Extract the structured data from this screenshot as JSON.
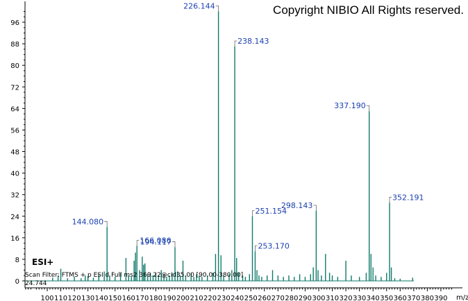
{
  "chart_data": {
    "type": "bar",
    "title": "",
    "xlabel": "m/z",
    "ylabel": "",
    "xlim": [
      80,
      400
    ],
    "ylim": [
      0,
      100
    ],
    "x_ticks": [
      100,
      110,
      120,
      130,
      140,
      150,
      160,
      170,
      180,
      190,
      200,
      210,
      220,
      230,
      240,
      250,
      260,
      270,
      280,
      290,
      300,
      310,
      320,
      330,
      340,
      350,
      360,
      370,
      380,
      390
    ],
    "y_ticks": [
      0,
      8,
      16,
      24,
      32,
      40,
      48,
      56,
      64,
      72,
      80,
      88,
      96
    ],
    "grid": false,
    "bar_color": "#0f7a6a",
    "label_color": "#1a3fb0",
    "annotations": {
      "copyright": "Copyright NIBIO All Rights reserved.",
      "ion_mode": "ESI+",
      "scan_filter": "Scan Filter: FTMS + p ESI d Full ms2 369.22@cid35.00 [90.00-380.00]",
      "max_intensity": "24.744"
    },
    "labeled_peaks": [
      {
        "mz": 144.08,
        "label": "144.080",
        "intensity": 20
      },
      {
        "mz": 166.086,
        "label": "166.086",
        "intensity": 13
      },
      {
        "mz": 194.117,
        "label": "194.117",
        "intensity": 12.5
      },
      {
        "mz": 226.144,
        "label": "226.144",
        "intensity": 100
      },
      {
        "mz": 238.143,
        "label": "238.143",
        "intensity": 87
      },
      {
        "mz": 251.154,
        "label": "251.154",
        "intensity": 24
      },
      {
        "mz": 253.17,
        "label": "253.170",
        "intensity": 11
      },
      {
        "mz": 298.143,
        "label": "298.143",
        "intensity": 26
      },
      {
        "mz": 337.19,
        "label": "337.190",
        "intensity": 63
      },
      {
        "mz": 352.191,
        "label": "352.191",
        "intensity": 29
      }
    ],
    "peaks": [
      {
        "mz": 104.0,
        "intensity": 1.2
      },
      {
        "mz": 108.0,
        "intensity": 2.0
      },
      {
        "mz": 110.0,
        "intensity": 4.5
      },
      {
        "mz": 115.0,
        "intensity": 1.0
      },
      {
        "mz": 120.0,
        "intensity": 1.5
      },
      {
        "mz": 125.0,
        "intensity": 1.0
      },
      {
        "mz": 128.0,
        "intensity": 2.0
      },
      {
        "mz": 130.0,
        "intensity": 1.8
      },
      {
        "mz": 134.0,
        "intensity": 1.2
      },
      {
        "mz": 138.0,
        "intensity": 2.5
      },
      {
        "mz": 142.0,
        "intensity": 3.5
      },
      {
        "mz": 144.08,
        "intensity": 20
      },
      {
        "mz": 146.0,
        "intensity": 2.0
      },
      {
        "mz": 150.0,
        "intensity": 1.5
      },
      {
        "mz": 154.0,
        "intensity": 3.0
      },
      {
        "mz": 158.0,
        "intensity": 8.5
      },
      {
        "mz": 160.0,
        "intensity": 2.0
      },
      {
        "mz": 162.0,
        "intensity": 1.5
      },
      {
        "mz": 164.0,
        "intensity": 7.5
      },
      {
        "mz": 165.0,
        "intensity": 10.5
      },
      {
        "mz": 166.086,
        "intensity": 13
      },
      {
        "mz": 168.0,
        "intensity": 4.0
      },
      {
        "mz": 170.0,
        "intensity": 9.0
      },
      {
        "mz": 171.0,
        "intensity": 6.0
      },
      {
        "mz": 172.0,
        "intensity": 6.5
      },
      {
        "mz": 174.0,
        "intensity": 2.5
      },
      {
        "mz": 176.0,
        "intensity": 3.0
      },
      {
        "mz": 178.0,
        "intensity": 2.0
      },
      {
        "mz": 180.0,
        "intensity": 3.0
      },
      {
        "mz": 182.0,
        "intensity": 2.0
      },
      {
        "mz": 184.0,
        "intensity": 4.0
      },
      {
        "mz": 186.0,
        "intensity": 2.5
      },
      {
        "mz": 188.0,
        "intensity": 1.5
      },
      {
        "mz": 190.0,
        "intensity": 2.0
      },
      {
        "mz": 192.0,
        "intensity": 3.0
      },
      {
        "mz": 194.117,
        "intensity": 12.5
      },
      {
        "mz": 196.0,
        "intensity": 3.5
      },
      {
        "mz": 198.0,
        "intensity": 2.0
      },
      {
        "mz": 200.0,
        "intensity": 7.5
      },
      {
        "mz": 202.0,
        "intensity": 2.0
      },
      {
        "mz": 206.0,
        "intensity": 3.0
      },
      {
        "mz": 208.0,
        "intensity": 1.5
      },
      {
        "mz": 210.0,
        "intensity": 2.5
      },
      {
        "mz": 212.0,
        "intensity": 2.0
      },
      {
        "mz": 214.0,
        "intensity": 1.5
      },
      {
        "mz": 218.0,
        "intensity": 2.0
      },
      {
        "mz": 222.0,
        "intensity": 3.0
      },
      {
        "mz": 224.0,
        "intensity": 10.0
      },
      {
        "mz": 226.144,
        "intensity": 100
      },
      {
        "mz": 228.0,
        "intensity": 9.5
      },
      {
        "mz": 230.0,
        "intensity": 2.0
      },
      {
        "mz": 234.0,
        "intensity": 2.5
      },
      {
        "mz": 236.0,
        "intensity": 4.0
      },
      {
        "mz": 238.143,
        "intensity": 87
      },
      {
        "mz": 239.5,
        "intensity": 8.5
      },
      {
        "mz": 241.0,
        "intensity": 3.0
      },
      {
        "mz": 244.0,
        "intensity": 2.0
      },
      {
        "mz": 246.0,
        "intensity": 1.5
      },
      {
        "mz": 249.0,
        "intensity": 2.5
      },
      {
        "mz": 251.154,
        "intensity": 24
      },
      {
        "mz": 253.17,
        "intensity": 11
      },
      {
        "mz": 254.5,
        "intensity": 4.0
      },
      {
        "mz": 256.0,
        "intensity": 2.0
      },
      {
        "mz": 258.0,
        "intensity": 1.5
      },
      {
        "mz": 262.0,
        "intensity": 2.0
      },
      {
        "mz": 266.0,
        "intensity": 4.0
      },
      {
        "mz": 270.0,
        "intensity": 2.0
      },
      {
        "mz": 274.0,
        "intensity": 1.5
      },
      {
        "mz": 278.0,
        "intensity": 2.0
      },
      {
        "mz": 282.0,
        "intensity": 1.5
      },
      {
        "mz": 286.0,
        "intensity": 2.5
      },
      {
        "mz": 290.0,
        "intensity": 1.5
      },
      {
        "mz": 294.0,
        "intensity": 2.5
      },
      {
        "mz": 296.0,
        "intensity": 5.0
      },
      {
        "mz": 298.143,
        "intensity": 26
      },
      {
        "mz": 299.5,
        "intensity": 4.0
      },
      {
        "mz": 302.0,
        "intensity": 2.0
      },
      {
        "mz": 305.0,
        "intensity": 10.0
      },
      {
        "mz": 308.0,
        "intensity": 3.0
      },
      {
        "mz": 310.0,
        "intensity": 2.0
      },
      {
        "mz": 314.0,
        "intensity": 1.5
      },
      {
        "mz": 320.0,
        "intensity": 7.5
      },
      {
        "mz": 324.0,
        "intensity": 2.0
      },
      {
        "mz": 330.0,
        "intensity": 1.5
      },
      {
        "mz": 335.0,
        "intensity": 3.0
      },
      {
        "mz": 337.19,
        "intensity": 63
      },
      {
        "mz": 338.5,
        "intensity": 10.0
      },
      {
        "mz": 340.0,
        "intensity": 5.0
      },
      {
        "mz": 342.0,
        "intensity": 2.0
      },
      {
        "mz": 346.0,
        "intensity": 1.5
      },
      {
        "mz": 350.0,
        "intensity": 3.0
      },
      {
        "mz": 352.191,
        "intensity": 29
      },
      {
        "mz": 353.5,
        "intensity": 5.0
      },
      {
        "mz": 356.0,
        "intensity": 1.0
      },
      {
        "mz": 360.0,
        "intensity": 0.8
      },
      {
        "mz": 369.22,
        "intensity": 1.2
      }
    ]
  }
}
